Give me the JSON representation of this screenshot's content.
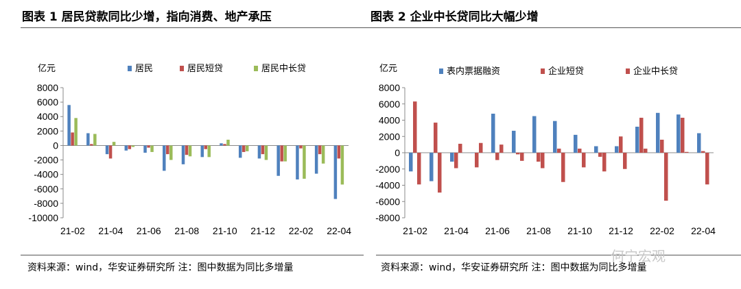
{
  "left": {
    "title": "图表 1 居民贷款同比少增，指向消费、地产承压",
    "source": "资料来源：wind，华安证券研究所 注：图中数据为同比多增量"
  },
  "right": {
    "title": "图表 2 企业中长贷同比大幅少增",
    "source": "资料来源：wind，华安证券研究所 注：图中数据为同比多增量"
  },
  "watermark": "何宁宏观",
  "chart_data": [
    {
      "type": "bar",
      "title": "图表 1 居民贷款同比少增，指向消费、地产承压",
      "ylabel": "亿元",
      "ylim": [
        -10000,
        8000
      ],
      "yticks": [
        8000,
        6000,
        4000,
        2000,
        0,
        -2000,
        -4000,
        -6000,
        -8000,
        -10000
      ],
      "categories": [
        "21-02",
        "21-03",
        "21-04",
        "21-05",
        "21-06",
        "21-07",
        "21-08",
        "21-09",
        "21-10",
        "21-11",
        "21-12",
        "22-01",
        "22-02",
        "22-03",
        "22-04"
      ],
      "xtick_labels": [
        "21-02",
        "21-04",
        "21-06",
        "21-08",
        "21-10",
        "21-12",
        "22-02",
        "22-04"
      ],
      "legend_position": "top",
      "colors": [
        "#4f81bd",
        "#c0504d",
        "#9bbb59"
      ],
      "series": [
        {
          "name": "居民",
          "values": [
            5600,
            1700,
            -1200,
            -700,
            -1000,
            -3500,
            -2600,
            -1600,
            300,
            -1700,
            -1800,
            -4200,
            -4700,
            -3900,
            -7400
          ]
        },
        {
          "name": "居民短贷",
          "values": [
            1800,
            200,
            -1800,
            -500,
            -300,
            -1200,
            -1300,
            -500,
            200,
            -900,
            -1200,
            -2200,
            -400,
            -1200,
            -1800
          ]
        },
        {
          "name": "居民中长贷",
          "values": [
            3800,
            1600,
            500,
            -200,
            -900,
            -2000,
            -1500,
            -1600,
            800,
            -800,
            -2000,
            -2200,
            -4600,
            -2500,
            -5400
          ]
        }
      ]
    },
    {
      "type": "bar",
      "title": "图表 2 企业中长贷同比大幅少增",
      "ylabel": "亿元",
      "ylim": [
        -8000,
        8000
      ],
      "yticks": [
        8000,
        6000,
        4000,
        2000,
        0,
        -2000,
        -4000,
        -6000,
        -8000
      ],
      "categories": [
        "21-02",
        "21-03",
        "21-04",
        "21-05",
        "21-06",
        "21-07",
        "21-08",
        "21-09",
        "21-10",
        "21-11",
        "21-12",
        "22-01",
        "22-02",
        "22-03",
        "22-04"
      ],
      "xtick_labels": [
        "21-02",
        "21-04",
        "21-06",
        "21-08",
        "21-10",
        "21-12",
        "22-02",
        "22-04"
      ],
      "legend_position": "top",
      "colors": [
        "#4f81bd",
        "#c0504d",
        "#c0504d"
      ],
      "series": [
        {
          "name": "表内票据融资",
          "values": [
            -2300,
            -3500,
            -1100,
            0,
            4800,
            2700,
            4500,
            3900,
            2200,
            800,
            800,
            3200,
            4900,
            4700,
            2400
          ]
        },
        {
          "name": "企业短贷",
          "values": [
            6300,
            3700,
            -1900,
            -1800,
            -900,
            -200,
            -1100,
            500,
            500,
            -500,
            2000,
            4300,
            1600,
            4300,
            200
          ]
        },
        {
          "name": "企业中长贷",
          "values": [
            -3900,
            -4900,
            1100,
            1200,
            1000,
            -1000,
            -1900,
            -3600,
            -1800,
            -2300,
            -2000,
            500,
            -5900,
            100,
            -3900
          ]
        }
      ]
    }
  ]
}
